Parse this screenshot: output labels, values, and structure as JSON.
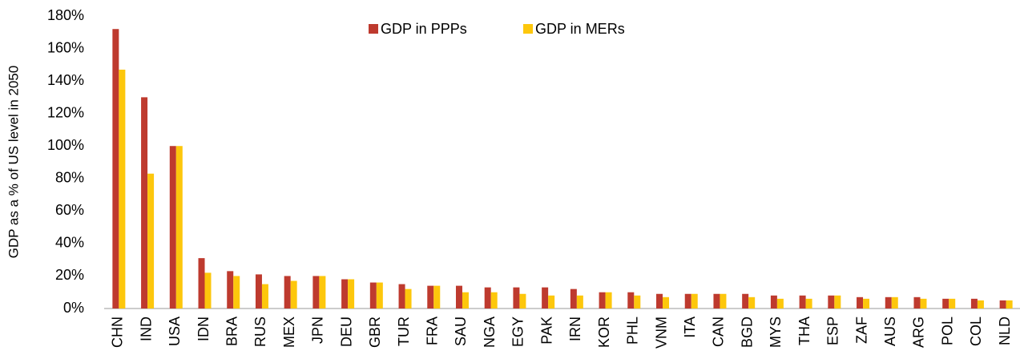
{
  "chart_data": {
    "type": "bar",
    "ylabel": "GDP as a % of US level in 2050",
    "categories": [
      "CHN",
      "IND",
      "USA",
      "IDN",
      "BRA",
      "RUS",
      "MEX",
      "JPN",
      "DEU",
      "GBR",
      "TUR",
      "FRA",
      "SAU",
      "NGA",
      "EGY",
      "PAK",
      "IRN",
      "KOR",
      "PHL",
      "VNM",
      "ITA",
      "CAN",
      "BGD",
      "MYS",
      "THA",
      "ESP",
      "ZAF",
      "AUS",
      "ARG",
      "POL",
      "COL",
      "NLD"
    ],
    "series": [
      {
        "name": "GDP in PPPs",
        "color": "#be3a2e",
        "values": [
          172,
          130,
          100,
          31,
          23,
          21,
          20,
          20,
          18,
          16,
          15,
          14,
          14,
          13,
          13,
          13,
          12,
          10,
          10,
          9,
          9,
          9,
          9,
          8,
          8,
          8,
          7,
          7,
          7,
          6,
          6,
          5
        ]
      },
      {
        "name": "GDP in MERs",
        "color": "#fdc70c",
        "values": [
          147,
          83,
          100,
          22,
          20,
          15,
          17,
          20,
          18,
          16,
          12,
          14,
          10,
          10,
          9,
          8,
          8,
          10,
          8,
          7,
          9,
          9,
          7,
          6,
          6,
          8,
          6,
          7,
          6,
          6,
          5,
          5
        ]
      }
    ],
    "ylim": [
      0,
      180
    ],
    "yticks": [
      {
        "value": 0,
        "label": "0%"
      },
      {
        "value": 20,
        "label": "20%"
      },
      {
        "value": 40,
        "label": "40%"
      },
      {
        "value": 60,
        "label": "60%"
      },
      {
        "value": 80,
        "label": "80%"
      },
      {
        "value": 100,
        "label": "100%"
      },
      {
        "value": 120,
        "label": "120%"
      },
      {
        "value": 140,
        "label": "140%"
      },
      {
        "value": 160,
        "label": "160%"
      },
      {
        "value": 180,
        "label": "180%"
      }
    ],
    "grid": false,
    "legend": "top"
  }
}
